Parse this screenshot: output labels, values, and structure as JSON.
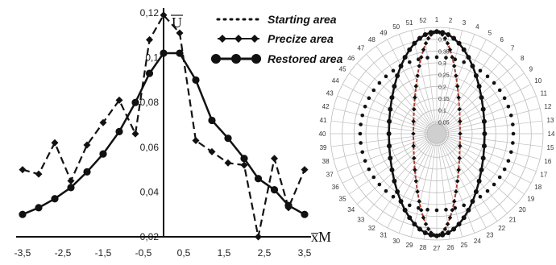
{
  "chart_data": [
    {
      "type": "line",
      "title": "",
      "xlabel": "x̅M",
      "ylabel": "U̅",
      "xlim": [
        -3.5,
        3.5
      ],
      "ylim": [
        0.02,
        0.12
      ],
      "x_ticks": [
        "-3,5",
        "-2,5",
        "-1,5",
        "-0,5",
        "0,5",
        "1,5",
        "2,5",
        "3,5"
      ],
      "y_ticks": [
        "0,02",
        "0,04",
        "0,06",
        "0,08",
        "0,1",
        "0,12"
      ],
      "legend_position": "top-right",
      "series": [
        {
          "name": "Starting area",
          "style": "dotted",
          "x": [
            -3.5,
            3.5
          ],
          "y": [
            0.022,
            0.022
          ]
        },
        {
          "name": "Precize area",
          "style": "dashed-diamond",
          "x": [
            -3.5,
            -3.1,
            -2.7,
            -2.3,
            -1.9,
            -1.5,
            -1.1,
            -0.7,
            -0.35,
            0.0,
            0.4,
            0.8,
            1.2,
            1.6,
            2.0,
            2.35,
            2.75,
            3.1,
            3.5
          ],
          "y": [
            0.05,
            0.048,
            0.062,
            0.045,
            0.061,
            0.071,
            0.081,
            0.066,
            0.108,
            0.119,
            0.111,
            0.063,
            0.058,
            0.053,
            0.052,
            0.02,
            0.055,
            0.033,
            0.05
          ]
        },
        {
          "name": "Restored area",
          "style": "solid-circle",
          "x": [
            -3.5,
            -3.1,
            -2.7,
            -2.3,
            -1.9,
            -1.5,
            -1.1,
            -0.7,
            -0.35,
            0.0,
            0.4,
            0.8,
            1.2,
            1.6,
            2.0,
            2.35,
            2.75,
            3.1,
            3.5
          ],
          "y": [
            0.03,
            0.033,
            0.037,
            0.042,
            0.049,
            0.057,
            0.067,
            0.08,
            0.093,
            0.102,
            0.102,
            0.09,
            0.072,
            0.064,
            0.055,
            0.046,
            0.041,
            0.034,
            0.03
          ]
        }
      ]
    },
    {
      "type": "polar",
      "title": "",
      "radial_ticks": [
        "0,05",
        "0,1",
        "0,15",
        "0,2",
        "0,25",
        "0,3",
        "0,35",
        "0,4"
      ],
      "angular_labels": [
        "1",
        "2",
        "3",
        "4",
        "5",
        "6",
        "7",
        "8",
        "9",
        "10",
        "11",
        "12",
        "13",
        "14",
        "15",
        "16",
        "17",
        "18",
        "19",
        "20",
        "21",
        "22",
        "23",
        "24",
        "25",
        "26",
        "27",
        "28",
        "29",
        "30",
        "31",
        "32",
        "33",
        "34",
        "35",
        "36",
        "37",
        "38",
        "39",
        "40",
        "41",
        "42",
        "43",
        "44",
        "45",
        "46",
        "47",
        "48",
        "49",
        "50",
        "51",
        "52"
      ],
      "series": [
        {
          "name": "Starting area",
          "shape": "circle",
          "radius_fraction": 0.72
        },
        {
          "name": "Precize area",
          "shape": "narrow-ellipse",
          "width_fraction": 0.22,
          "height_fraction": 0.96
        },
        {
          "name": "Restored area",
          "shape": "ellipse",
          "width_fraction": 0.45,
          "height_fraction": 0.96
        }
      ]
    }
  ],
  "legend": {
    "items": [
      {
        "label": "Starting area"
      },
      {
        "label": "Precize area"
      },
      {
        "label": "Restored area"
      }
    ]
  },
  "colors": {
    "line": "#111111",
    "grid_polar": "#bdbdbd",
    "red_trace": "#b33a2a"
  }
}
